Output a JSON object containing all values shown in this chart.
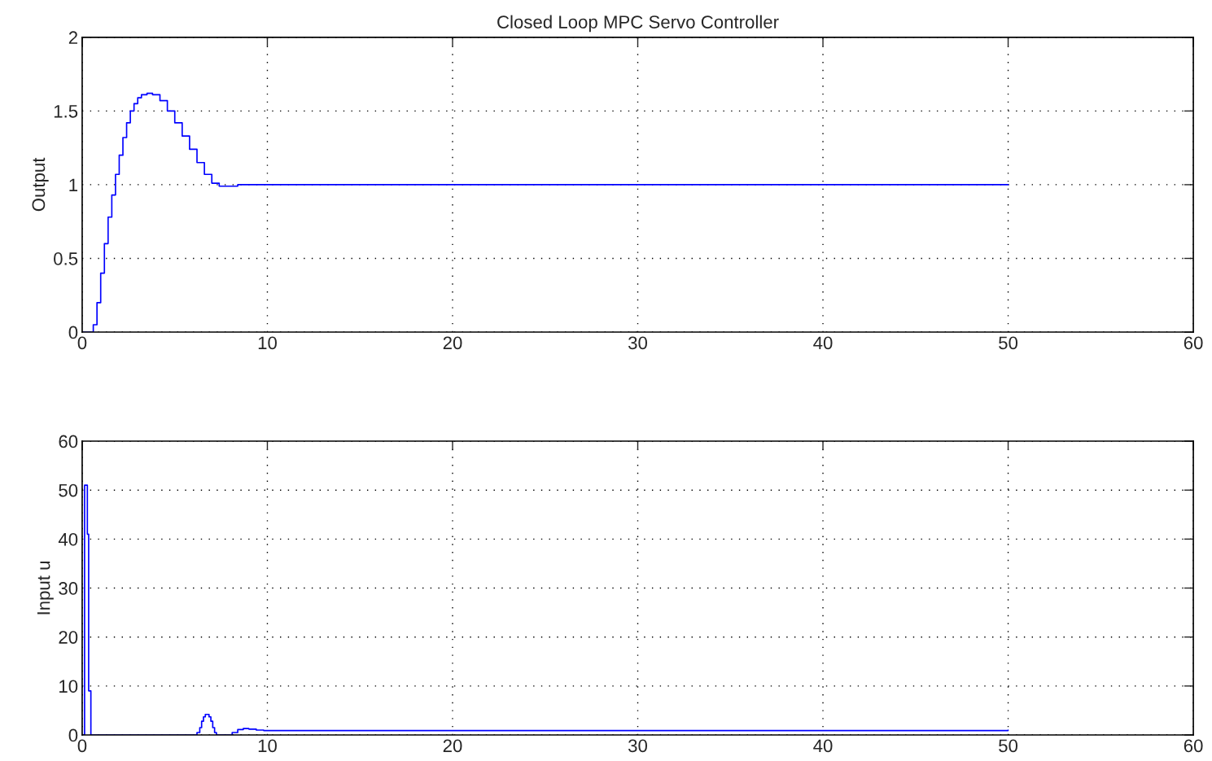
{
  "chart_data": [
    {
      "type": "step",
      "title": "Closed Loop MPC Servo Controller",
      "ylabel": "Output",
      "series": [
        {
          "color": "#0000ff",
          "x": [
            0,
            0.4,
            0.6,
            0.8,
            1.0,
            1.2,
            1.4,
            1.6,
            1.8,
            2.0,
            2.2,
            2.4,
            2.6,
            2.8,
            3.0,
            3.2,
            3.5,
            3.8,
            4.2,
            4.6,
            5.0,
            5.4,
            5.8,
            6.2,
            6.6,
            7.0,
            7.4,
            7.8,
            8.4,
            9.0,
            50
          ],
          "values": [
            0,
            0,
            0.05,
            0.2,
            0.4,
            0.6,
            0.78,
            0.93,
            1.07,
            1.2,
            1.32,
            1.42,
            1.5,
            1.55,
            1.59,
            1.61,
            1.62,
            1.61,
            1.57,
            1.5,
            1.42,
            1.33,
            1.24,
            1.15,
            1.07,
            1.01,
            0.99,
            0.99,
            1.0,
            1.0,
            1.0
          ]
        }
      ],
      "xlim": [
        0,
        60
      ],
      "xticks": [
        0,
        10,
        20,
        30,
        40,
        50,
        60
      ],
      "ylim": [
        0,
        2
      ],
      "yticks": [
        0,
        0.5,
        1,
        1.5,
        2
      ],
      "grid": true,
      "line_style": "solid"
    },
    {
      "type": "step",
      "ylabel": "Input u",
      "series": [
        {
          "color": "#0000ff",
          "x": [
            0,
            0.13,
            0.28,
            0.35,
            0.47,
            6.2,
            6.35,
            6.45,
            6.55,
            6.65,
            6.75,
            6.85,
            6.95,
            7.05,
            7.15,
            7.25,
            7.8,
            8.1,
            8.4,
            8.7,
            9.0,
            9.4,
            9.8,
            50
          ],
          "values": [
            0,
            51,
            41,
            9,
            0,
            0.5,
            1.5,
            2.8,
            3.7,
            4.2,
            4.2,
            3.7,
            2.8,
            1.5,
            0.5,
            0,
            0,
            0.5,
            1.1,
            1.3,
            1.2,
            1.0,
            0.9,
            1.0
          ]
        }
      ],
      "xlim": [
        0,
        60
      ],
      "xticks": [
        0,
        10,
        20,
        30,
        40,
        50,
        60
      ],
      "ylim": [
        0,
        60
      ],
      "yticks": [
        0,
        10,
        20,
        30,
        40,
        50,
        60
      ],
      "grid": true,
      "line_style": "solid"
    }
  ]
}
